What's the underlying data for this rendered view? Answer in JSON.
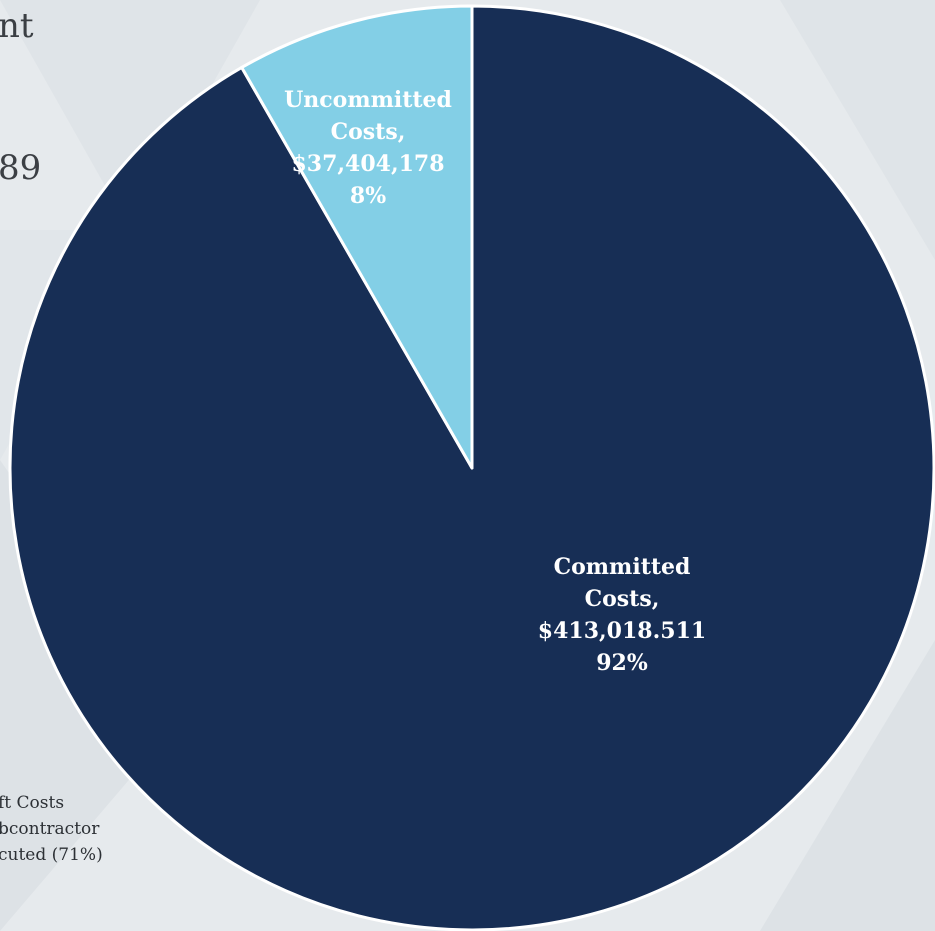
{
  "background_text": {
    "line_1": "nt",
    "line_2": "89",
    "note_lines": [
      "ft Costs",
      "bcontractor",
      "cuted (71%)"
    ]
  },
  "chart_data": {
    "type": "pie",
    "slices": [
      {
        "name": "Committed Costs",
        "value": 413018511,
        "percent": 92,
        "label_lines": [
          "Committed",
          "Costs,",
          "$413,018.511",
          "92%"
        ],
        "color": "#172e55",
        "label_color": "#ffffff"
      },
      {
        "name": "Uncommitted Costs",
        "value": 37404178,
        "percent": 8,
        "label_lines": [
          "Uncommitted",
          "Costs,",
          "$37,404,178",
          "8%"
        ],
        "color": "#83cfe6",
        "label_color": "#ffffff"
      }
    ],
    "start_angle": "12 o'clock",
    "direction": "clockwise",
    "legend": "none"
  }
}
